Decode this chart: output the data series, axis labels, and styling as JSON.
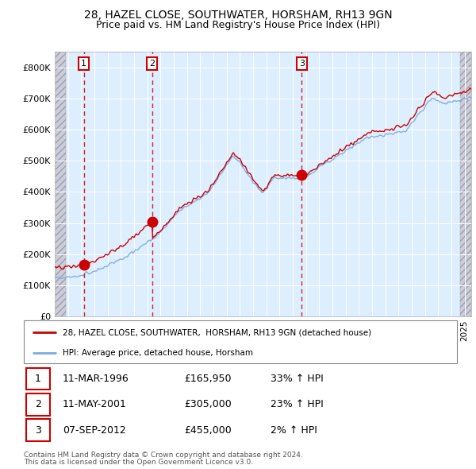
{
  "title1": "28, HAZEL CLOSE, SOUTHWATER, HORSHAM, RH13 9GN",
  "title2": "Price paid vs. HM Land Registry's House Price Index (HPI)",
  "xlim_start": 1994.0,
  "xlim_end": 2025.5,
  "ylim_min": 0,
  "ylim_max": 850000,
  "yticks": [
    0,
    100000,
    200000,
    300000,
    400000,
    500000,
    600000,
    700000,
    800000
  ],
  "ytick_labels": [
    "£0",
    "£100K",
    "£200K",
    "£300K",
    "£400K",
    "£500K",
    "£600K",
    "£700K",
    "£800K"
  ],
  "purchase1_date": 1996.19,
  "purchase1_price": 165950,
  "purchase2_date": 2001.36,
  "purchase2_price": 305000,
  "purchase3_date": 2012.68,
  "purchase3_price": 455000,
  "line1_color": "#cc0000",
  "line2_color": "#7aaadd",
  "legend1": "28, HAZEL CLOSE, SOUTHWATER,  HORSHAM, RH13 9GN (detached house)",
  "legend2": "HPI: Average price, detached house, Horsham",
  "table_rows": [
    {
      "num": "1",
      "date": "11-MAR-1996",
      "price": "£165,950",
      "change": "33% ↑ HPI"
    },
    {
      "num": "2",
      "date": "11-MAY-2001",
      "price": "£305,000",
      "change": "23% ↑ HPI"
    },
    {
      "num": "3",
      "date": "07-SEP-2012",
      "price": "£455,000",
      "change": "2% ↑ HPI"
    }
  ],
  "footnote1": "Contains HM Land Registry data © Crown copyright and database right 2024.",
  "footnote2": "This data is licensed under the Open Government Licence v3.0.",
  "bg_color": "#ddeeff",
  "hatch_left_end": 1994.83,
  "hatch_right_start": 2024.67
}
